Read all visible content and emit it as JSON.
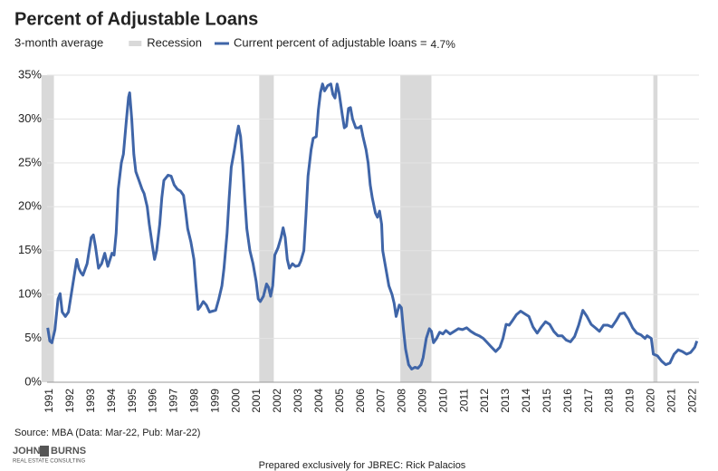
{
  "chart_data": {
    "type": "line",
    "title": "Percent of Adjustable Loans",
    "subtitle": "3-month average",
    "current_label": "4.7%",
    "recession": {
      "name": "Recession",
      "color": "#d9d9d9",
      "spans": [
        [
          1990.6,
          1991.2
        ],
        [
          2001.1,
          2001.8
        ],
        [
          2007.9,
          2009.4
        ],
        [
          2020.1,
          2020.3
        ]
      ]
    },
    "x": [
      1990.9,
      1991.0,
      1991.1,
      1991.25,
      1991.4,
      1991.5,
      1991.6,
      1991.75,
      1991.9,
      1992.0,
      1992.2,
      1992.3,
      1992.4,
      1992.5,
      1992.6,
      1992.8,
      1993.0,
      1993.1,
      1993.2,
      1993.35,
      1993.5,
      1993.65,
      1993.8,
      1994.0,
      1994.1,
      1994.2,
      1994.3,
      1994.45,
      1994.55,
      1994.7,
      1994.8,
      1994.85,
      1994.95,
      1995.05,
      1995.15,
      1995.3,
      1995.45,
      1995.55,
      1995.7,
      1995.8,
      1995.95,
      1996.05,
      1996.15,
      1996.3,
      1996.4,
      1996.5,
      1996.6,
      1996.7,
      1996.85,
      1997.0,
      1997.15,
      1997.3,
      1997.45,
      1997.55,
      1997.65,
      1997.8,
      1997.95,
      1998.05,
      1998.15,
      1998.25,
      1998.4,
      1998.55,
      1998.7,
      1998.85,
      1999.0,
      1999.15,
      1999.3,
      1999.4,
      1999.55,
      1999.65,
      1999.75,
      1999.9,
      2000.0,
      2000.1,
      2000.2,
      2000.3,
      2000.4,
      2000.5,
      2000.65,
      2000.8,
      2000.95,
      2001.05,
      2001.15,
      2001.3,
      2001.45,
      2001.55,
      2001.65,
      2001.75,
      2001.85,
      2002.0,
      2002.15,
      2002.25,
      2002.35,
      2002.45,
      2002.55,
      2002.7,
      2002.85,
      2003.0,
      2003.1,
      2003.25,
      2003.35,
      2003.45,
      2003.6,
      2003.7,
      2003.85,
      2003.95,
      2004.05,
      2004.15,
      2004.25,
      2004.4,
      2004.55,
      2004.65,
      2004.75,
      2004.85,
      2004.95,
      2005.1,
      2005.2,
      2005.3,
      2005.4,
      2005.5,
      2005.6,
      2005.75,
      2005.9,
      2006.0,
      2006.1,
      2006.25,
      2006.35,
      2006.45,
      2006.55,
      2006.7,
      2006.8,
      2006.9,
      2007.0,
      2007.05,
      2007.2,
      2007.35,
      2007.5,
      2007.6,
      2007.7,
      2007.85,
      2007.95,
      2008.05,
      2008.15,
      2008.3,
      2008.45,
      2008.6,
      2008.75,
      2008.9,
      2009.0,
      2009.15,
      2009.3,
      2009.4,
      2009.5,
      2009.65,
      2009.8,
      2009.95,
      2010.1,
      2010.3,
      2010.5,
      2010.7,
      2010.9,
      2011.1,
      2011.3,
      2011.5,
      2011.7,
      2011.9,
      2012.1,
      2012.3,
      2012.5,
      2012.7,
      2012.85,
      2013.0,
      2013.15,
      2013.3,
      2013.5,
      2013.7,
      2013.9,
      2014.1,
      2014.3,
      2014.5,
      2014.7,
      2014.9,
      2015.1,
      2015.3,
      2015.5,
      2015.7,
      2015.9,
      2016.1,
      2016.3,
      2016.5,
      2016.7,
      2016.9,
      2017.1,
      2017.3,
      2017.5,
      2017.7,
      2017.9,
      2018.1,
      2018.3,
      2018.5,
      2018.7,
      2018.9,
      2019.1,
      2019.3,
      2019.5,
      2019.7,
      2019.8,
      2020.0,
      2020.1,
      2020.3,
      2020.5,
      2020.7,
      2020.9,
      2021.1,
      2021.3,
      2021.5,
      2021.7,
      2021.9,
      2022.1,
      2022.2
    ],
    "series": [
      {
        "name": "Current percent of adjustable loans =",
        "color": "#3f65a8",
        "values": [
          6.2,
          4.7,
          4.5,
          6,
          9.5,
          10.1,
          8,
          7.5,
          8,
          9.5,
          12.5,
          14,
          13,
          12.5,
          12.2,
          13.5,
          16.5,
          16.8,
          15.5,
          13,
          13.5,
          14.7,
          13.2,
          14.7,
          14.5,
          17,
          22,
          25,
          26,
          30,
          32.5,
          33,
          30,
          26,
          24,
          23,
          22,
          21.5,
          20,
          18,
          15.5,
          14,
          15,
          18,
          21,
          23,
          23.3,
          23.6,
          23.5,
          22.5,
          22,
          21.8,
          21.3,
          19.5,
          17.5,
          16,
          14,
          11,
          8.3,
          8.6,
          9.2,
          8.8,
          8,
          8.1,
          8.2,
          9.5,
          11,
          13,
          17,
          21,
          24.5,
          26.5,
          28,
          29.2,
          28,
          25,
          21,
          17.5,
          15,
          13.5,
          11.5,
          9.5,
          9.2,
          9.8,
          11.2,
          10.8,
          9.8,
          11,
          14.5,
          15.3,
          16.5,
          17.6,
          16.5,
          14,
          13,
          13.5,
          13.2,
          13.3,
          13.8,
          15,
          19,
          23.5,
          26.5,
          27.8,
          28,
          31,
          33,
          34,
          33.2,
          33.8,
          34,
          32.8,
          32.4,
          34,
          33,
          30.5,
          29,
          29.2,
          31.2,
          31.3,
          30,
          29,
          29,
          29.2,
          28,
          26.5,
          25,
          22.5,
          21,
          19.3,
          18.8,
          19.5,
          18,
          15,
          13,
          11,
          10,
          9,
          7.5,
          8.8,
          8.5,
          6,
          3.8,
          2,
          1.5,
          1.7,
          1.6,
          2,
          2.8,
          5,
          6.1,
          5.8,
          4.5,
          5,
          5.7,
          5.5,
          5.9,
          5.5,
          5.8,
          6.1,
          6,
          6.2,
          5.8,
          5.5,
          5.3,
          5,
          4.5,
          4,
          3.5,
          4,
          5,
          6.6,
          6.5,
          7,
          7.7,
          8.1,
          7.8,
          7.5,
          6.3,
          5.6,
          6.3,
          6.9,
          6.6,
          5.8,
          5.3,
          5.3,
          4.8,
          4.6,
          5.2,
          6.5,
          8.2,
          7.5,
          6.6,
          6.2,
          5.8,
          6.5,
          6.5,
          6.3,
          7,
          7.8,
          7.9,
          7.2,
          6.2,
          5.6,
          5.4,
          5,
          5.3,
          5,
          3.2,
          3,
          2.4,
          2,
          2.2,
          3.2,
          3.7,
          3.5,
          3.2,
          3.4,
          4,
          4.7
        ]
      }
    ],
    "xlim": [
      1990.87,
      2022.3
    ],
    "xticks": [
      1991,
      1992,
      1993,
      1994,
      1995,
      1996,
      1997,
      1998,
      1999,
      2000,
      2001,
      2002,
      2003,
      2004,
      2005,
      2006,
      2007,
      2008,
      2009,
      2010,
      2011,
      2012,
      2013,
      2014,
      2015,
      2016,
      2017,
      2018,
      2019,
      2020,
      2021,
      2022
    ],
    "ylim": [
      0,
      35
    ],
    "yticks": [
      {
        "value": 0,
        "label": "0%"
      },
      {
        "value": 5,
        "label": "5%"
      },
      {
        "value": 10,
        "label": "10%"
      },
      {
        "value": 15,
        "label": "15%"
      },
      {
        "value": 20,
        "label": "20%"
      },
      {
        "value": 25,
        "label": "25%"
      },
      {
        "value": 30,
        "label": "30%"
      },
      {
        "value": 35,
        "label": "35%"
      }
    ],
    "grid": true,
    "source": "Source: MBA (Data: Mar-22, Pub: Mar-22)",
    "logo": [
      "JOHN",
      "BURNS",
      "REAL ESTATE CONSULTING"
    ],
    "footer": "Prepared exclusively for JBREC: Rick Palacios"
  }
}
